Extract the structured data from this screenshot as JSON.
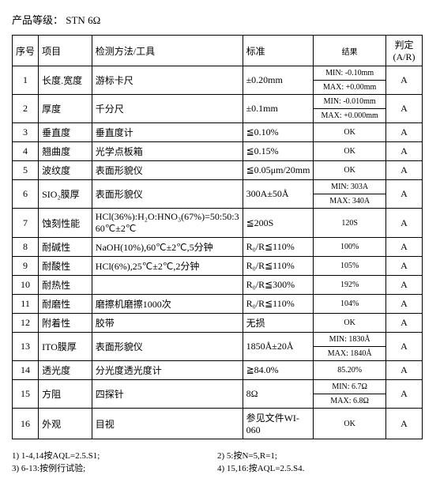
{
  "product_grade_label": "产品等级：",
  "product_grade_value": "STN   6Ω",
  "headers": {
    "no": "序号",
    "item": "项目",
    "method": "检测方法/工具",
    "std": "标准",
    "result": "结果",
    "judge": "判定(A/R)"
  },
  "rows": [
    {
      "no": "1",
      "item": "长度.宽度",
      "method": "游标卡尺",
      "std": "±0.20mm",
      "result_a": "MIN: -0.10mm",
      "result_b": "MAX: +0.00mm",
      "judge": "A",
      "split": true
    },
    {
      "no": "2",
      "item": "厚度",
      "method": "千分尺",
      "std": "±0.1mm",
      "result_a": "MIN: -0.010mm",
      "result_b": "MAX: +0.000mm",
      "judge": "A",
      "split": true
    },
    {
      "no": "3",
      "item": "垂直度",
      "method": "垂直度计",
      "std": "≦0.10%",
      "result": "OK",
      "judge": "A"
    },
    {
      "no": "4",
      "item": "翘曲度",
      "method": "光学点板箱",
      "std": "≦0.15%",
      "result": "OK",
      "judge": "A"
    },
    {
      "no": "5",
      "item": "波纹度",
      "method": "表面形貌仪",
      "std": "≦0.05μm/20mm",
      "result": "OK",
      "judge": "A"
    },
    {
      "no": "6",
      "item": "SIO₂膜厚",
      "method": "表面形貌仪",
      "std": "300A±50Å",
      "result_a": "MIN: 303A",
      "result_b": "MAX: 340A",
      "judge": "A",
      "split": true
    },
    {
      "no": "7",
      "item": "蚀刻性能",
      "method": "HCl(36%):H₂O:HNO₃(67%)=50:50:3  60℃±2℃",
      "std": "≦200S",
      "result": "120S",
      "judge": "A"
    },
    {
      "no": "8",
      "item": "耐碱性",
      "method": "NaOH(10%),60℃±2℃,5分钟",
      "std": "R₀/R≦110%",
      "result": "100%",
      "judge": "A"
    },
    {
      "no": "9",
      "item": "耐酸性",
      "method": "HCl(6%),25℃±2℃,2分钟",
      "std": "R₀/R≦110%",
      "result": "105%",
      "judge": "A"
    },
    {
      "no": "10",
      "item": "耐热性",
      "method": "",
      "std": "R₀/R≦300%",
      "result": "192%",
      "judge": "A"
    },
    {
      "no": "11",
      "item": "耐磨性",
      "method": "磨擦机磨擦1000次",
      "std": "R₀/R≦110%",
      "result": "104%",
      "judge": "A"
    },
    {
      "no": "12",
      "item": "附着性",
      "method": "胶带",
      "std": "无损",
      "result": "OK",
      "judge": "A"
    },
    {
      "no": "13",
      "item": "ITO膜厚",
      "method": "表面形貌仪",
      "std": "1850Å±20Å",
      "result_a": "MIN: 1830Å",
      "result_b": "MAX: 1840Å",
      "judge": "A",
      "split": true
    },
    {
      "no": "14",
      "item": "透光度",
      "method": "分光度透光度计",
      "std": "≧84.0%",
      "result": "85.20%",
      "judge": "A"
    },
    {
      "no": "15",
      "item": "方阻",
      "method": "四探针",
      "std": "8Ω",
      "result_a": "MIN: 6.7Ω",
      "result_b": "MAX: 6.8Ω",
      "judge": "A",
      "split": true
    },
    {
      "no": "16",
      "item": "外观",
      "method": "目视",
      "std": "参见文件WI-060",
      "result": "OK",
      "judge": "A"
    }
  ],
  "footnotes": {
    "f1": "1)  1-4,14按AQL=2.5.S1;",
    "f2": "2)  5:按N=5,R=1;",
    "f3": "3)  6-13:按例行试验;",
    "f4": "4)  15,16:按AQL=2.5.S4."
  }
}
